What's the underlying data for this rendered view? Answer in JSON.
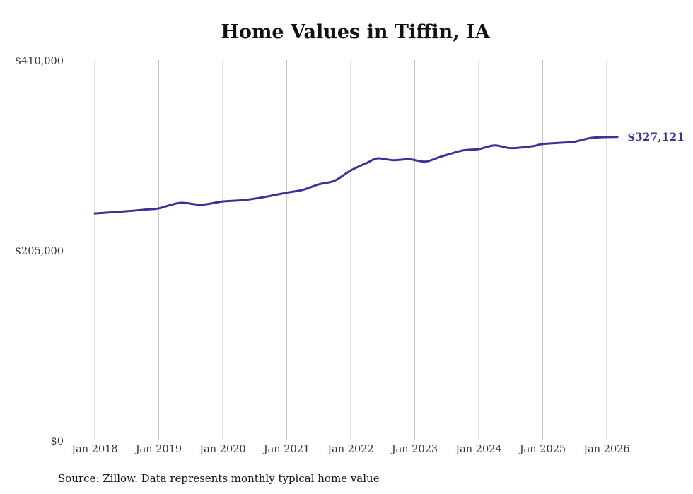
{
  "chart_data": {
    "type": "line",
    "title": "Home Values in Tiffin, IA",
    "source": "Source: Zillow. Data represents monthly typical home value",
    "xlabel": "",
    "ylabel": "",
    "ylim": [
      0,
      410000
    ],
    "y_ticks": [
      "$0",
      "$205,000",
      "$410,000"
    ],
    "y_tick_values": [
      0,
      205000,
      410000
    ],
    "x_ticks": [
      "Jan 2018",
      "Jan 2019",
      "Jan 2020",
      "Jan 2021",
      "Jan 2022",
      "Jan 2023",
      "Jan 2024",
      "Jan 2025",
      "Jan 2026"
    ],
    "grid": "vertical",
    "line_color": "#3a3296",
    "end_label": "$327,121",
    "series": [
      {
        "name": "Home value",
        "x": [
          "2018-01",
          "2018-07",
          "2018-11",
          "2019-01",
          "2019-05",
          "2019-09",
          "2020-01",
          "2020-05",
          "2020-09",
          "2021-01",
          "2021-04",
          "2021-07",
          "2021-10",
          "2022-01",
          "2022-04",
          "2022-06",
          "2022-09",
          "2022-12",
          "2023-03",
          "2023-06",
          "2023-10",
          "2024-01",
          "2024-04",
          "2024-07",
          "2024-11",
          "2025-01",
          "2025-05",
          "2025-07",
          "2025-10",
          "2026-01",
          "2026-03"
        ],
        "values": [
          244500,
          247000,
          249000,
          250000,
          256000,
          254000,
          257500,
          259000,
          262500,
          267000,
          270000,
          276000,
          280000,
          291000,
          299000,
          304000,
          302000,
          303000,
          300500,
          306000,
          312500,
          314000,
          318000,
          315000,
          317000,
          319500,
          321000,
          322000,
          326000,
          327000,
          327121
        ]
      }
    ]
  }
}
